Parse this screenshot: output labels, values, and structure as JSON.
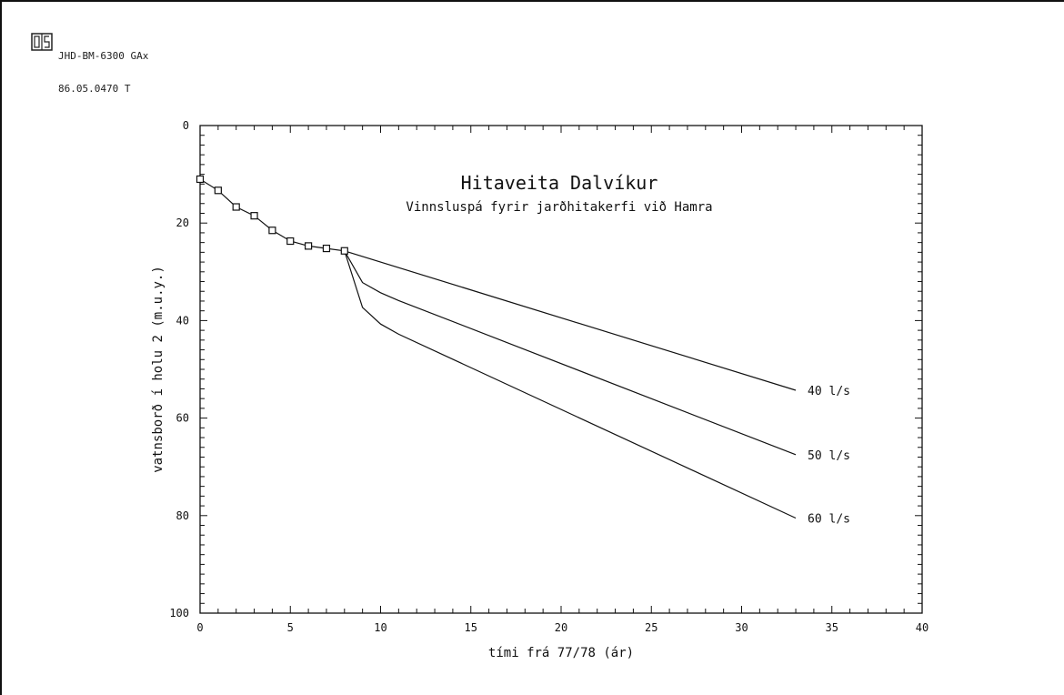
{
  "stamp": {
    "logo_text": "OS",
    "line1": "JHD-BM-6300 GAx",
    "line2": "86.05.0470 T"
  },
  "chart_data": {
    "type": "line",
    "title": "Hitaveita Dalvíkur",
    "subtitle": "Vinnsluspá fyrir jarðhitakerfi við Hamra",
    "xlabel": "tími frá 77/78 (ár)",
    "ylabel": "vatnsborð í holu 2 (m.u.y.)",
    "xlim": [
      0,
      40
    ],
    "ylim": [
      0,
      100
    ],
    "y_inverted": true,
    "x_ticks": [
      0,
      5,
      10,
      15,
      20,
      25,
      30,
      35,
      40
    ],
    "y_ticks": [
      0,
      20,
      40,
      60,
      80,
      100
    ],
    "grid": false,
    "measured": {
      "marker": "square",
      "x": [
        0,
        1,
        2,
        3,
        4,
        5,
        6,
        7,
        8
      ],
      "y": [
        11,
        13.3,
        16.7,
        18.5,
        21.5,
        23.7,
        24.7,
        25.2,
        25.7
      ]
    },
    "series": [
      {
        "name": "40 l/s",
        "x": [
          8,
          33
        ],
        "y": [
          25.7,
          54.3
        ]
      },
      {
        "name": "50 l/s",
        "x": [
          8,
          9,
          10,
          11,
          33
        ],
        "y": [
          25.7,
          32.2,
          34.3,
          35.9,
          67.5
        ]
      },
      {
        "name": "60 l/s",
        "x": [
          8,
          9,
          10,
          11,
          33
        ],
        "y": [
          25.7,
          37.3,
          40.7,
          42.8,
          80.5
        ]
      }
    ]
  }
}
